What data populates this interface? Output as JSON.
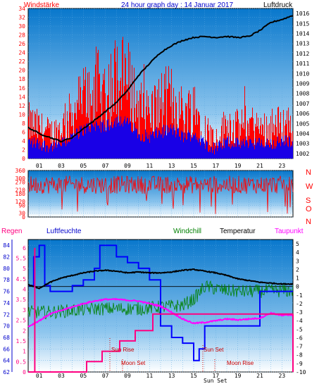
{
  "header": {
    "left_label": "Windstärke",
    "title": "24 hour graph day : 14 Januar 2017",
    "right_label": "Luftdruck"
  },
  "dir_letters": [
    "N",
    "W",
    "S",
    "O",
    "N"
  ],
  "bottom_labels": {
    "regen": "Regen",
    "luftfeuchte": "Luftfeuchte",
    "windchill": "Windchill",
    "temperatur": "Temperatur",
    "taupunkt": "Taupunkt"
  },
  "events": {
    "sun_rise": "Sun Rise",
    "moon_set": "Moon Set",
    "sun_set": "Sun Set",
    "sun_set_2": "Sun Set",
    "moon_rise": "Moon Rise"
  },
  "colors": {
    "wind": "#ff0000",
    "gust_avg": "#0000ff",
    "pressure": "#000000",
    "humidity": "#0000ff",
    "windchill": "#008000",
    "temperature": "#000000",
    "dewpoint": "#ff00ff",
    "rain": "#ff0080",
    "bg_top": "#0a7fd0",
    "bg_bottom": "#ffffff"
  },
  "chart_data": [
    {
      "type": "line",
      "name": "wind_pressure",
      "title": "24 hour graph day : 14 Januar 2017",
      "x_ticks": [
        "01",
        "03",
        "05",
        "07",
        "09",
        "11",
        "13",
        "15",
        "17",
        "19",
        "21",
        "23"
      ],
      "y_left_ticks": [
        0,
        2,
        4,
        6,
        8,
        10,
        12,
        14,
        16,
        18,
        20,
        22,
        24,
        26,
        28,
        30,
        32,
        34
      ],
      "y_right_ticks": [
        1002,
        1003,
        1004,
        1005,
        1006,
        1007,
        1008,
        1009,
        1010,
        1011,
        1012,
        1013,
        1014,
        1015,
        1016
      ],
      "ylim_left": [
        0,
        34
      ],
      "ylim_right": [
        1001.5,
        1016.5
      ],
      "series": [
        {
          "name": "Windstärke",
          "hours": [
            0,
            1,
            2,
            3,
            4,
            5,
            6,
            7,
            8,
            9,
            10,
            11,
            12,
            13,
            14,
            15,
            16,
            17,
            18,
            19,
            20,
            21,
            22,
            23,
            24
          ],
          "values": [
            7,
            6,
            5,
            6,
            9,
            12,
            14,
            13,
            16,
            15,
            10,
            9,
            11,
            12,
            9,
            10,
            6,
            4,
            7,
            6,
            7,
            6,
            6,
            7,
            7
          ]
        },
        {
          "name": "Luftdruck",
          "hours": [
            0,
            0.5,
            1,
            2,
            3,
            4,
            5,
            6,
            7,
            8,
            9,
            10,
            11,
            12,
            13,
            14,
            15,
            16,
            17,
            18,
            19,
            20,
            21,
            22,
            23,
            24
          ],
          "values": [
            1004.6,
            1004.3,
            1004.0,
            1003.6,
            1003.2,
            1003.6,
            1004.5,
            1005.3,
            1006.2,
            1007.1,
            1008.3,
            1009.8,
            1011.0,
            1012.1,
            1012.8,
            1013.3,
            1013.6,
            1013.7,
            1013.6,
            1013.7,
            1013.6,
            1013.7,
            1014.3,
            1015.1,
            1015.4,
            1015.8
          ]
        }
      ]
    },
    {
      "type": "line",
      "name": "wind_direction",
      "x_ticks": [
        "01",
        "03",
        "05",
        "07",
        "09",
        "11",
        "13",
        "15",
        "17",
        "19",
        "21",
        "23"
      ],
      "y_ticks": [
        0,
        30,
        90,
        120,
        180,
        210,
        270,
        300,
        360
      ],
      "ylim": [
        0,
        360
      ],
      "series": [
        {
          "name": "Windrichtung",
          "mean_deg": 250
        }
      ]
    },
    {
      "type": "line",
      "name": "temp_humidity",
      "x_ticks": [
        "01",
        "03",
        "05",
        "07",
        "09",
        "11",
        "13",
        "15",
        "17",
        "19",
        "21",
        "23"
      ],
      "y_left_ticks": [
        62,
        64,
        66,
        68,
        70,
        72,
        74,
        76,
        78,
        80,
        82,
        84
      ],
      "y_rain_ticks": [
        0,
        0.5,
        1,
        1.5,
        2,
        2.5,
        3,
        3.5,
        4,
        4.5,
        5,
        5.5,
        6
      ],
      "y_right_ticks": [
        5,
        4,
        3,
        2,
        1,
        0,
        -1,
        -2,
        -3,
        -4,
        -5,
        -6,
        -7,
        -8,
        -9,
        -10
      ],
      "series": [
        {
          "name": "Luftfeuchte",
          "hours": [
            0,
            0.5,
            1,
            1.5,
            2,
            3,
            4,
            5,
            6,
            6.5,
            7,
            8,
            9,
            10,
            10.5,
            11,
            12,
            13,
            14,
            15,
            15.5,
            16,
            17,
            18,
            19,
            20,
            21,
            22,
            23,
            24
          ],
          "values": [
            77,
            82,
            84,
            77,
            76,
            76,
            77,
            78,
            80,
            84,
            84,
            82,
            81,
            80,
            80,
            78,
            70,
            68,
            67,
            64,
            66,
            70,
            70,
            70,
            70,
            70,
            76,
            76,
            76,
            76
          ]
        },
        {
          "name": "Temperatur",
          "hours": [
            0,
            1,
            2,
            3,
            4,
            5,
            6,
            7,
            8,
            9,
            10,
            11,
            12,
            13,
            14,
            15,
            16,
            17,
            18,
            19,
            20,
            21,
            22,
            23,
            24
          ],
          "values": [
            0.2,
            -0.2,
            0.5,
            1.0,
            1.3,
            1.6,
            1.8,
            1.9,
            1.8,
            1.6,
            1.7,
            1.6,
            1.6,
            1.7,
            1.9,
            2.0,
            1.8,
            1.6,
            1.3,
            0.9,
            0.7,
            0.5,
            0.4,
            0.3,
            0.3
          ]
        },
        {
          "name": "Windchill",
          "hours": [
            0,
            2,
            4,
            6,
            8,
            10,
            12,
            14,
            15,
            16,
            18,
            20,
            22,
            24
          ],
          "values": [
            -3.0,
            -3.0,
            -2.8,
            -2.6,
            -2.6,
            -2.6,
            -2.4,
            -2.2,
            -1.5,
            0,
            -0.5,
            -0.6,
            -0.5,
            -0.5
          ]
        },
        {
          "name": "Taupunkt",
          "hours": [
            0,
            1,
            2,
            3,
            4,
            5,
            6,
            7,
            8,
            9,
            10,
            11,
            12,
            13,
            14,
            15,
            16,
            17,
            18,
            19,
            20,
            21,
            22,
            23,
            24
          ],
          "values": [
            -4.7,
            -4.0,
            -3.2,
            -2.8,
            -2.4,
            -2.0,
            -1.7,
            -1.5,
            -1.5,
            -1.6,
            -1.7,
            -2.0,
            -2.3,
            -3.0,
            -3.8,
            -4.3,
            -4.2,
            -4.0,
            -3.8,
            -3.9,
            -3.8,
            -3.7,
            -3.1,
            -3.4,
            -3.3
          ]
        },
        {
          "name": "Regen",
          "hours": [
            0,
            5.3,
            5.3,
            6.7,
            6.7,
            8.3,
            8.3,
            9.7,
            9.7,
            11.3,
            11.3,
            24
          ],
          "values": [
            0,
            0,
            0.5,
            0.5,
            1,
            1,
            1.5,
            1.5,
            2,
            2,
            2.8,
            2.8
          ]
        }
      ]
    }
  ]
}
